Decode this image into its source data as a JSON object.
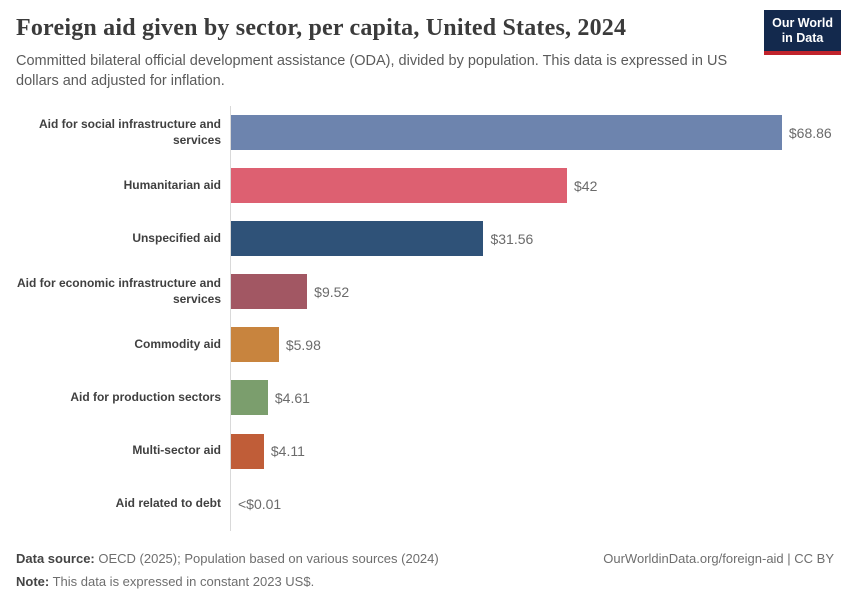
{
  "header": {
    "title": "Foreign aid given by sector, per capita, United States, 2024",
    "subtitle": "Committed bilateral official development assistance (ODA), divided by population. This data is expressed in US dollars and adjusted for inflation.",
    "logo_line1": "Our World",
    "logo_line2": "in Data",
    "logo_bg_color": "#13294d",
    "logo_accent_color": "#c0232c"
  },
  "chart_data": {
    "type": "bar",
    "orientation": "horizontal",
    "title": "Foreign aid given by sector, per capita, United States, 2024",
    "unit": "constant 2023 US$ per capita",
    "xlim": [
      0,
      70
    ],
    "grid": false,
    "legend": false,
    "categories": [
      "Aid for social infrastructure and services",
      "Humanitarian aid",
      "Unspecified aid",
      "Aid for economic infrastructure and services",
      "Commodity aid",
      "Aid for production sectors",
      "Multi-sector aid",
      "Aid related to debt"
    ],
    "tick_labels": [
      "Aid for social infrastructure and\nservices",
      "Humanitarian aid",
      "Unspecified aid",
      "Aid for economic infrastructure and\nservices",
      "Commodity aid",
      "Aid for production sectors",
      "Multi-sector aid",
      "Aid related to debt"
    ],
    "values": [
      68.86,
      42,
      31.56,
      9.52,
      5.98,
      4.61,
      4.11,
      0.01
    ],
    "value_labels": [
      "$68.86",
      "$42",
      "$31.56",
      "$9.52",
      "$5.98",
      "$4.61",
      "$4.11",
      "<$0.01"
    ],
    "colors": [
      "#6d84ae",
      "#dd6071",
      "#2f5278",
      "#a25763",
      "#c8843e",
      "#7b9e6d",
      "#c05d38",
      null
    ]
  },
  "footer": {
    "source_label": "Data source:",
    "source_text": " OECD (2025); Population based on various sources (2024)",
    "note_label": "Note:",
    "note_text": " This data is expressed in constant 2023 US$.",
    "link": "OurWorldinData.org/foreign-aid | CC BY"
  }
}
